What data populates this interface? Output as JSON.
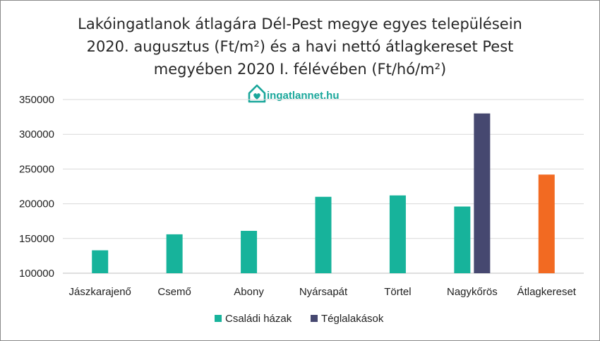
{
  "chart_data": {
    "type": "bar",
    "title_lines": [
      "Lakóingatlanok átlagára Dél-Pest megye egyes településein",
      "2020. augusztus (Ft/m²) és a havi nettó átlagkereset Pest",
      "megyében 2020 I. félévében (Ft/hó/m²)"
    ],
    "categories": [
      "Jászkarajenő",
      "Csemő",
      "Abony",
      "Nyársapát",
      "Törtel",
      "Nagykőrös",
      "Átlagkereset"
    ],
    "series": [
      {
        "name": "Családi házak",
        "color": "#17b39b",
        "values": [
          133000,
          156000,
          161000,
          210000,
          212000,
          196000,
          null
        ]
      },
      {
        "name": "Téglalakások",
        "color": "#464870",
        "values": [
          null,
          null,
          null,
          null,
          null,
          330000,
          null
        ]
      }
    ],
    "extra_bar": {
      "category": "Átlagkereset",
      "value": 242000,
      "color": "#f26a22"
    },
    "ylim": [
      100000,
      350000
    ],
    "yticks": [
      "100000",
      "150000",
      "200000",
      "250000",
      "300000",
      "350000"
    ],
    "ytick_values": [
      100000,
      150000,
      200000,
      250000,
      300000,
      350000
    ],
    "grid": true,
    "legend_position": "bottom",
    "logo": {
      "text": "ingatlannet.hu",
      "icon": "house-heart-icon"
    }
  }
}
